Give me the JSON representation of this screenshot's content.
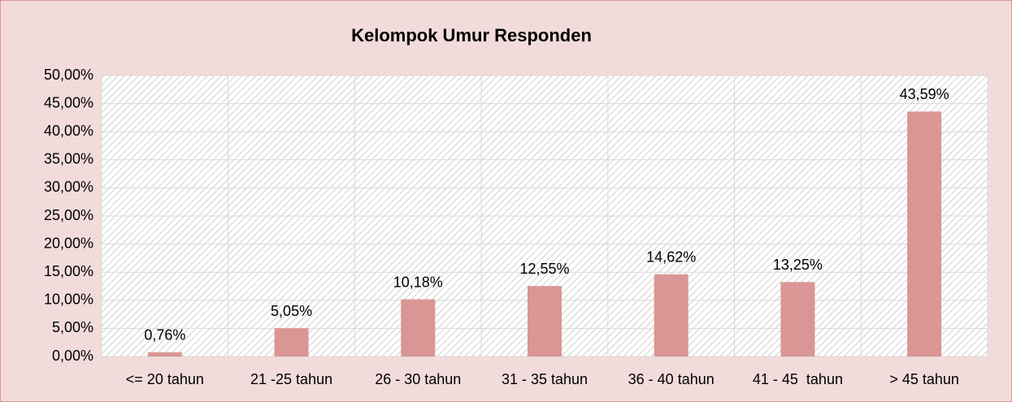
{
  "chart_data": {
    "type": "bar",
    "title": "Kelompok Umur Responden",
    "categories": [
      "<= 20 tahun",
      "21 -25 tahun",
      "26 - 30 tahun",
      "31 - 35 tahun",
      "36 - 40 tahun",
      "41 - 45  tahun",
      "> 45 tahun"
    ],
    "values": [
      0.76,
      5.05,
      10.18,
      12.55,
      14.62,
      13.25,
      43.59
    ],
    "value_labels": [
      "0,76%",
      "5,05%",
      "10,18%",
      "12,55%",
      "14,62%",
      "13,25%",
      "43,59%"
    ],
    "color": "#d99694",
    "ylim": [
      0,
      50
    ],
    "yticks": [
      {
        "value": 0,
        "label": "0,00%"
      },
      {
        "value": 5,
        "label": "5,00%"
      },
      {
        "value": 10,
        "label": "10,00%"
      },
      {
        "value": 15,
        "label": "15,00%"
      },
      {
        "value": 20,
        "label": "20,00%"
      },
      {
        "value": 25,
        "label": "25,00%"
      },
      {
        "value": 30,
        "label": "30,00%"
      },
      {
        "value": 35,
        "label": "35,00%"
      },
      {
        "value": 40,
        "label": "40,00%"
      },
      {
        "value": 45,
        "label": "45,00%"
      },
      {
        "value": 50,
        "label": "50,00%"
      }
    ],
    "grid": true
  }
}
